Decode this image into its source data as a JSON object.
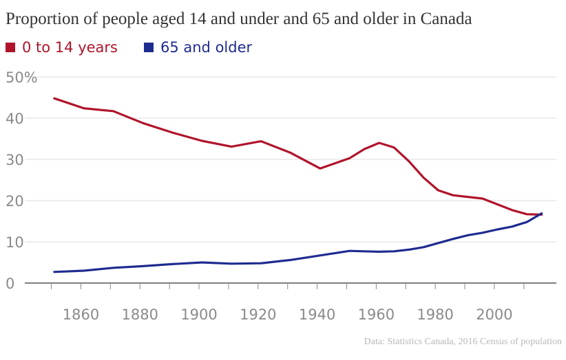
{
  "chart_data": {
    "type": "line",
    "title": "Proportion of people aged 14 and under and 65 and older in Canada",
    "source": "Data: Statistics Canada, 2016 Census of population",
    "xlim": [
      1841,
      2021
    ],
    "ylim": [
      0,
      50
    ],
    "y_ticks": [
      {
        "value": 0,
        "label": "0"
      },
      {
        "value": 10,
        "label": "10"
      },
      {
        "value": 20,
        "label": "20"
      },
      {
        "value": 30,
        "label": "30"
      },
      {
        "value": 40,
        "label": "40"
      },
      {
        "value": 50,
        "label": "50%"
      }
    ],
    "x_ticks": [
      {
        "value": 1860,
        "label": "1860"
      },
      {
        "value": 1880,
        "label": "1880"
      },
      {
        "value": 1900,
        "label": "1900"
      },
      {
        "value": 1920,
        "label": "1920"
      },
      {
        "value": 1940,
        "label": "1940"
      },
      {
        "value": 1960,
        "label": "1960"
      },
      {
        "value": 1980,
        "label": "1980"
      },
      {
        "value": 2000,
        "label": "2000"
      }
    ],
    "grid": true,
    "legend_position": "top-left",
    "series": [
      {
        "name": "0 to 14 years",
        "color": "#b0142a",
        "x": [
          1851,
          1861,
          1871,
          1881,
          1891,
          1901,
          1911,
          1921,
          1931,
          1941,
          1951,
          1956,
          1961,
          1966,
          1971,
          1976,
          1981,
          1986,
          1991,
          1996,
          2001,
          2006,
          2011,
          2016
        ],
        "y": [
          44.8,
          42.4,
          41.7,
          38.8,
          36.5,
          34.5,
          33.1,
          34.4,
          31.6,
          27.8,
          30.3,
          32.5,
          34.0,
          32.9,
          29.6,
          25.6,
          22.5,
          21.3,
          20.9,
          20.5,
          19.1,
          17.7,
          16.7,
          16.6
        ]
      },
      {
        "name": "65 and older",
        "color": "#1e2b8f",
        "x": [
          1851,
          1861,
          1871,
          1881,
          1891,
          1901,
          1911,
          1921,
          1931,
          1941,
          1951,
          1956,
          1961,
          1966,
          1971,
          1976,
          1981,
          1986,
          1991,
          1996,
          2001,
          2006,
          2011,
          2016
        ],
        "y": [
          2.7,
          3.0,
          3.7,
          4.1,
          4.6,
          5.0,
          4.7,
          4.8,
          5.6,
          6.7,
          7.8,
          7.7,
          7.6,
          7.7,
          8.1,
          8.7,
          9.7,
          10.7,
          11.6,
          12.2,
          13.0,
          13.7,
          14.8,
          16.9
        ]
      }
    ]
  }
}
